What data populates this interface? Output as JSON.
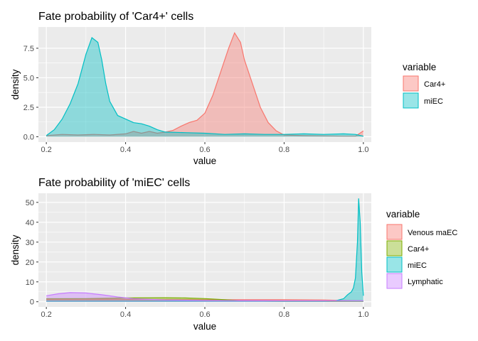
{
  "chart_data": [
    {
      "type": "area",
      "title": "Fate probability of 'Car4+' cells",
      "xlabel": "value",
      "ylabel": "density",
      "xlim": [
        0.18,
        1.02
      ],
      "ylim": [
        -0.45,
        9.3
      ],
      "xticks": [
        0.2,
        0.4,
        0.6,
        0.8,
        1.0
      ],
      "xtick_labels": [
        "0.2",
        "0.4",
        "0.6",
        "0.8",
        "1.0"
      ],
      "yticks": [
        0,
        2.5,
        5,
        7.5
      ],
      "ytick_labels": [
        "0.0",
        "2.5",
        "5.0",
        "7.5"
      ],
      "grid": true,
      "legend_title": "variable",
      "legend_position": "right",
      "series": [
        {
          "name": "Car4+",
          "color": "#F8766D",
          "points": [
            [
              0.2,
              0.1
            ],
            [
              0.24,
              0.2
            ],
            [
              0.28,
              0.15
            ],
            [
              0.32,
              0.2
            ],
            [
              0.36,
              0.15
            ],
            [
              0.4,
              0.25
            ],
            [
              0.42,
              0.45
            ],
            [
              0.44,
              0.3
            ],
            [
              0.46,
              0.45
            ],
            [
              0.48,
              0.3
            ],
            [
              0.5,
              0.4
            ],
            [
              0.52,
              0.55
            ],
            [
              0.54,
              0.9
            ],
            [
              0.56,
              1.2
            ],
            [
              0.58,
              1.4
            ],
            [
              0.6,
              2.0
            ],
            [
              0.62,
              3.5
            ],
            [
              0.64,
              5.5
            ],
            [
              0.66,
              7.5
            ],
            [
              0.675,
              8.8
            ],
            [
              0.69,
              8.0
            ],
            [
              0.7,
              6.5
            ],
            [
              0.72,
              4.5
            ],
            [
              0.74,
              2.5
            ],
            [
              0.76,
              1.2
            ],
            [
              0.78,
              0.5
            ],
            [
              0.8,
              0.15
            ],
            [
              0.85,
              0.1
            ],
            [
              0.9,
              0.08
            ],
            [
              0.95,
              0.05
            ],
            [
              0.98,
              0.05
            ],
            [
              1.0,
              0.5
            ]
          ]
        },
        {
          "name": "miEC",
          "color": "#00BFC4",
          "points": [
            [
              0.2,
              0.1
            ],
            [
              0.22,
              0.6
            ],
            [
              0.24,
              1.5
            ],
            [
              0.26,
              2.8
            ],
            [
              0.28,
              4.5
            ],
            [
              0.3,
              7.0
            ],
            [
              0.315,
              8.4
            ],
            [
              0.33,
              8.0
            ],
            [
              0.34,
              6.5
            ],
            [
              0.35,
              4.5
            ],
            [
              0.36,
              3.0
            ],
            [
              0.38,
              1.8
            ],
            [
              0.4,
              1.5
            ],
            [
              0.42,
              1.2
            ],
            [
              0.44,
              1.1
            ],
            [
              0.46,
              0.9
            ],
            [
              0.48,
              0.6
            ],
            [
              0.5,
              0.4
            ],
            [
              0.55,
              0.35
            ],
            [
              0.6,
              0.3
            ],
            [
              0.65,
              0.2
            ],
            [
              0.7,
              0.25
            ],
            [
              0.75,
              0.2
            ],
            [
              0.8,
              0.2
            ],
            [
              0.85,
              0.25
            ],
            [
              0.9,
              0.2
            ],
            [
              0.95,
              0.25
            ],
            [
              0.98,
              0.2
            ],
            [
              1.0,
              0.05
            ]
          ]
        }
      ]
    },
    {
      "type": "area",
      "title": "Fate probability of 'miEC' cells",
      "xlabel": "value",
      "ylabel": "density",
      "xlim": [
        0.18,
        1.02
      ],
      "ylim": [
        -2.6,
        54.6
      ],
      "xticks": [
        0.2,
        0.4,
        0.6,
        0.8,
        1.0
      ],
      "xtick_labels": [
        "0.2",
        "0.4",
        "0.6",
        "0.8",
        "1.0"
      ],
      "yticks": [
        0,
        10,
        20,
        30,
        40,
        50
      ],
      "ytick_labels": [
        "0",
        "10",
        "20",
        "30",
        "40",
        "50"
      ],
      "grid": true,
      "legend_title": "variable",
      "legend_position": "right",
      "series": [
        {
          "name": "Venous maEC",
          "color": "#F8766D",
          "points": [
            [
              0.2,
              1.2
            ],
            [
              0.3,
              1.3
            ],
            [
              0.4,
              1.2
            ],
            [
              0.5,
              1.1
            ],
            [
              0.6,
              1.0
            ],
            [
              0.7,
              1.0
            ],
            [
              0.8,
              1.0
            ],
            [
              0.9,
              0.9
            ],
            [
              0.95,
              0.6
            ],
            [
              1.0,
              0.5
            ]
          ]
        },
        {
          "name": "Car4+",
          "color": "#7CAE00",
          "points": [
            [
              0.2,
              1.5
            ],
            [
              0.3,
              1.6
            ],
            [
              0.4,
              1.9
            ],
            [
              0.5,
              2.0
            ],
            [
              0.55,
              1.9
            ],
            [
              0.6,
              1.6
            ],
            [
              0.65,
              1.0
            ],
            [
              0.7,
              0.4
            ],
            [
              0.8,
              0.2
            ],
            [
              0.9,
              0.2
            ],
            [
              1.0,
              0.2
            ]
          ]
        },
        {
          "name": "miEC",
          "color": "#00BFC4",
          "points": [
            [
              0.2,
              0.3
            ],
            [
              0.4,
              0.3
            ],
            [
              0.6,
              0.3
            ],
            [
              0.8,
              0.3
            ],
            [
              0.9,
              0.3
            ],
            [
              0.93,
              0.5
            ],
            [
              0.95,
              1.5
            ],
            [
              0.96,
              3.5
            ],
            [
              0.97,
              5.0
            ],
            [
              0.975,
              7.0
            ],
            [
              0.98,
              12.0
            ],
            [
              0.985,
              30.0
            ],
            [
              0.988,
              52.0
            ],
            [
              0.992,
              40.0
            ],
            [
              0.996,
              15.0
            ],
            [
              1.0,
              3.0
            ]
          ]
        },
        {
          "name": "Lymphatic",
          "color": "#C77CFF",
          "points": [
            [
              0.2,
              3.0
            ],
            [
              0.23,
              4.0
            ],
            [
              0.26,
              4.6
            ],
            [
              0.3,
              4.4
            ],
            [
              0.34,
              3.5
            ],
            [
              0.38,
              2.4
            ],
            [
              0.42,
              1.5
            ],
            [
              0.5,
              0.9
            ],
            [
              0.6,
              0.6
            ],
            [
              0.8,
              0.5
            ],
            [
              1.0,
              0.5
            ]
          ]
        }
      ]
    }
  ]
}
